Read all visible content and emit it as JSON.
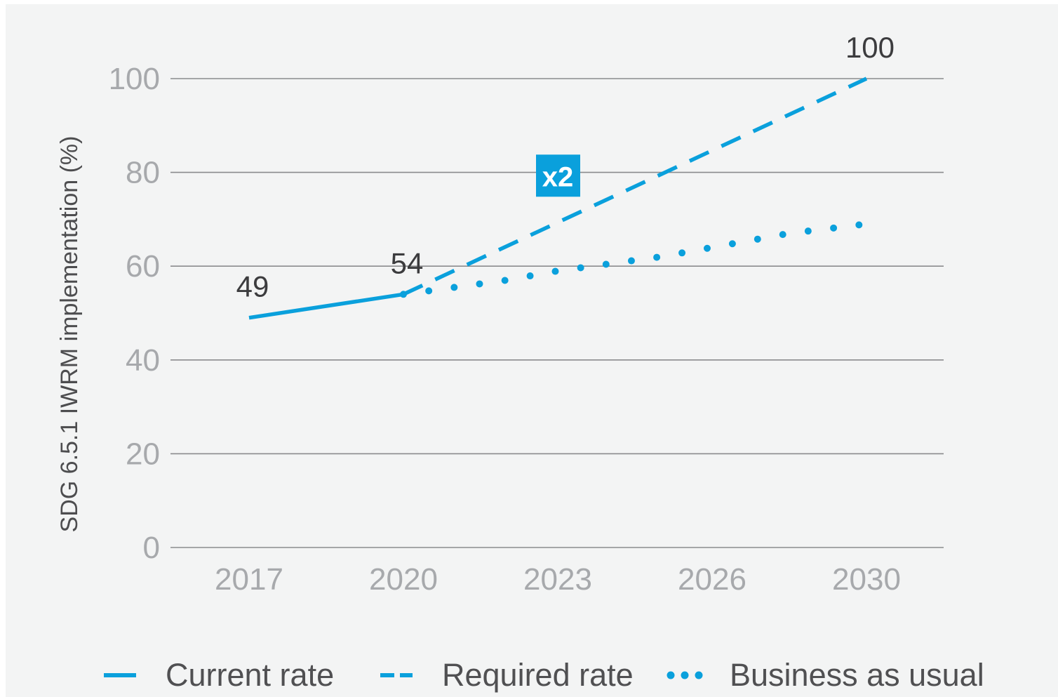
{
  "chart_data": {
    "type": "line",
    "title": "",
    "xlabel": "",
    "ylabel": "SDG 6.5.1 IWRM implementation (%)",
    "ylim": [
      0,
      100
    ],
    "yticks": [
      "0",
      "20",
      "40",
      "60",
      "80",
      "100"
    ],
    "categories": [
      "2017",
      "2020",
      "2023",
      "2026",
      "2030"
    ],
    "grid": true,
    "legend_position": "bottom",
    "series": [
      {
        "name": "Current rate",
        "style": "solid",
        "color": "#0aa0dc",
        "points": [
          [
            2017,
            49
          ],
          [
            2020,
            54
          ]
        ]
      },
      {
        "name": "Required rate",
        "style": "dashed",
        "color": "#0aa0dc",
        "points": [
          [
            2020,
            54
          ],
          [
            2030,
            100
          ]
        ]
      },
      {
        "name": "Business as usual",
        "style": "dotted",
        "color": "#0aa0dc",
        "points": [
          [
            2020,
            54
          ],
          [
            2021,
            55.5
          ],
          [
            2022,
            57
          ],
          [
            2023,
            59
          ],
          [
            2024,
            60.5
          ],
          [
            2025,
            62
          ],
          [
            2026,
            64
          ],
          [
            2027,
            65.5
          ],
          [
            2028,
            67
          ],
          [
            2029,
            68
          ],
          [
            2030,
            69
          ]
        ]
      }
    ],
    "data_labels": [
      {
        "text": "49",
        "x": 2017,
        "y": 49
      },
      {
        "text": "54",
        "x": 2020,
        "y": 54
      },
      {
        "text": "100",
        "x": 2030,
        "y": 100
      }
    ],
    "annotation": {
      "text": "x2",
      "x": 2023,
      "y": 79,
      "color": "#0aa0dc"
    }
  }
}
